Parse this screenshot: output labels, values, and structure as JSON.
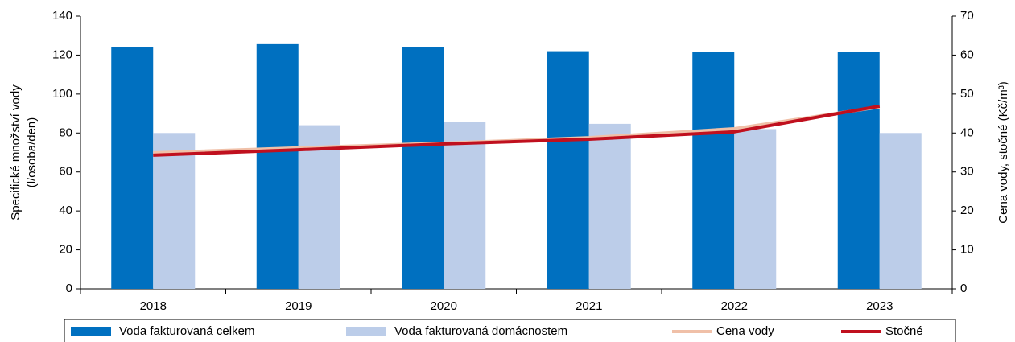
{
  "chart_data": {
    "type": "bar_line",
    "y_label": [
      "Specifické množství vody",
      "(l/osoba/den)"
    ],
    "y2_label": "Cena vody, stočné (Kč/m³)",
    "categories": [
      "2018",
      "2019",
      "2020",
      "2021",
      "2022",
      "2023"
    ],
    "series": [
      {
        "name": "Voda fakturovaná celkem",
        "type": "bar",
        "color": "#0070c0",
        "values": [
          124,
          125.6,
          124,
          122,
          121.5,
          121.5
        ]
      },
      {
        "name": "Voda fakturovaná domácnostem",
        "type": "bar",
        "color": "#bccde9",
        "values": [
          80,
          84,
          85.5,
          84.7,
          82,
          80
        ]
      },
      {
        "name": "Cena vody",
        "type": "line",
        "axis": "y2",
        "color": "#f0c0a8",
        "values": [
          34.9,
          36.2,
          37.4,
          38.8,
          41.1,
          46.7
        ]
      },
      {
        "name": "Stočné",
        "type": "line",
        "axis": "y2",
        "color": "#c0101e",
        "values": [
          34.3,
          35.7,
          37.2,
          38.4,
          40.3,
          46.9
        ]
      }
    ],
    "ylim": [
      0,
      140
    ],
    "yticks": [
      0,
      20,
      40,
      60,
      80,
      100,
      120,
      140
    ],
    "y2lim": [
      0,
      70
    ],
    "y2ticks": [
      0,
      10,
      20,
      30,
      40,
      50,
      60,
      70
    ],
    "legend": "bottom"
  }
}
